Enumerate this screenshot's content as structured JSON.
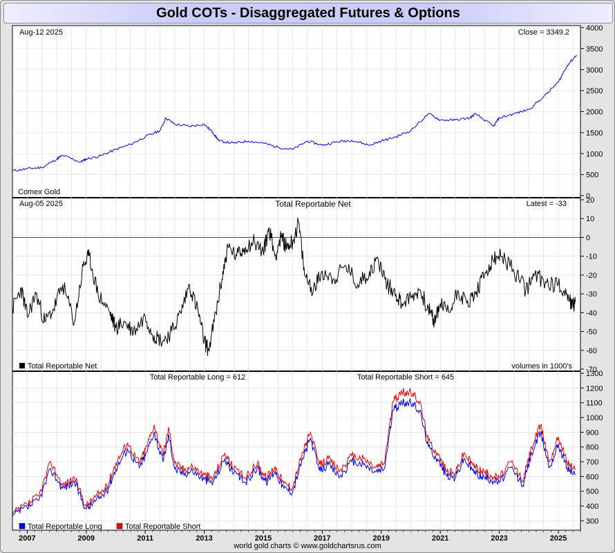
{
  "title": "Gold COTs - Disaggregated Futures & Options",
  "footer": "world gold charts © www.goldchartsrus.com",
  "colors": {
    "price": "#0000ee",
    "net": "#000000",
    "long": "#0000ee",
    "short": "#ee0000",
    "zero": "#cc0077"
  },
  "x_ticks": [
    "2007",
    "2009",
    "2011",
    "2013",
    "2015",
    "2017",
    "2019",
    "2021",
    "2023",
    "2025"
  ],
  "chart_data": [
    {
      "type": "line",
      "date_label": "Aug-12  2025",
      "value_label": "Close = 3349.2",
      "series_label": "Comex Gold",
      "ylim": [
        0,
        4000
      ],
      "yticks": [
        0,
        500,
        1000,
        1500,
        2000,
        2500,
        3000,
        3500,
        4000
      ],
      "x": [
        2006.5,
        2007.0,
        2007.5,
        2008.0,
        2008.2,
        2008.8,
        2009.0,
        2009.5,
        2010.0,
        2010.5,
        2011.0,
        2011.5,
        2011.7,
        2012.0,
        2012.5,
        2013.0,
        2013.3,
        2013.5,
        2014.0,
        2014.5,
        2015.0,
        2015.5,
        2016.0,
        2016.5,
        2017.0,
        2017.5,
        2018.0,
        2018.6,
        2019.0,
        2019.5,
        2020.0,
        2020.6,
        2021.0,
        2021.5,
        2022.0,
        2022.2,
        2022.8,
        2023.0,
        2023.5,
        2024.0,
        2024.5,
        2025.0,
        2025.3,
        2025.62
      ],
      "values": [
        590,
        640,
        670,
        870,
        960,
        800,
        870,
        950,
        1100,
        1220,
        1400,
        1550,
        1850,
        1700,
        1650,
        1700,
        1500,
        1300,
        1250,
        1300,
        1250,
        1150,
        1100,
        1300,
        1200,
        1280,
        1320,
        1200,
        1300,
        1400,
        1550,
        1950,
        1800,
        1800,
        1850,
        1950,
        1650,
        1850,
        1950,
        2050,
        2350,
        2700,
        3100,
        3349.2
      ]
    },
    {
      "type": "line",
      "title": "Total Reportable Net",
      "date_label": "Aug-05  2025",
      "value_label": "Latest = -33",
      "legend": "Total Reportable Net",
      "unit_note": "volumes in 1000's",
      "ylim": [
        -70,
        20
      ],
      "yticks": [
        -70,
        -60,
        -50,
        -40,
        -30,
        -20,
        -10,
        0,
        10,
        20
      ],
      "x": [
        2006.5,
        2006.8,
        2007.0,
        2007.3,
        2007.6,
        2007.9,
        2008.2,
        2008.6,
        2008.9,
        2009.1,
        2009.4,
        2009.8,
        2010.0,
        2010.3,
        2010.6,
        2011.0,
        2011.3,
        2011.6,
        2011.9,
        2012.2,
        2012.5,
        2012.8,
        2013.0,
        2013.15,
        2013.4,
        2013.6,
        2013.8,
        2014.1,
        2014.4,
        2014.7,
        2015.0,
        2015.2,
        2015.4,
        2015.6,
        2015.8,
        2016.0,
        2016.2,
        2016.4,
        2016.7,
        2017.0,
        2017.4,
        2017.8,
        2018.2,
        2018.6,
        2018.9,
        2019.2,
        2019.5,
        2019.7,
        2020.0,
        2020.3,
        2020.6,
        2020.8,
        2021.0,
        2021.3,
        2021.6,
        2021.9,
        2022.2,
        2022.5,
        2022.8,
        2023.1,
        2023.5,
        2023.9,
        2024.2,
        2024.6,
        2025.0,
        2025.3,
        2025.5,
        2025.58
      ],
      "values": [
        -38,
        -27,
        -42,
        -30,
        -45,
        -38,
        -25,
        -45,
        -15,
        -10,
        -30,
        -40,
        -48,
        -45,
        -50,
        -42,
        -52,
        -55,
        -50,
        -40,
        -25,
        -40,
        -55,
        -60,
        -40,
        -22,
        -5,
        -10,
        -5,
        -2,
        -8,
        5,
        -10,
        0,
        -5,
        -2,
        8,
        -20,
        -28,
        -18,
        -22,
        -15,
        -25,
        -18,
        -12,
        -25,
        -30,
        -35,
        -32,
        -28,
        -38,
        -45,
        -35,
        -40,
        -28,
        -35,
        -30,
        -20,
        -12,
        -10,
        -18,
        -28,
        -20,
        -24,
        -25,
        -30,
        -37,
        -33
      ]
    },
    {
      "type": "line",
      "title_long": "Total Reportable Long = 612",
      "title_short": "Total Reportable Short = 645",
      "ylim": [
        250,
        1300
      ],
      "yticks": [
        300,
        400,
        500,
        600,
        700,
        800,
        900,
        1000,
        1100,
        1200,
        1300
      ],
      "x": [
        2006.5,
        2007.0,
        2007.4,
        2007.8,
        2008.2,
        2008.6,
        2009.0,
        2009.3,
        2009.7,
        2010.0,
        2010.4,
        2010.8,
        2011.0,
        2011.3,
        2011.6,
        2011.8,
        2012.0,
        2012.3,
        2012.6,
        2013.0,
        2013.3,
        2013.7,
        2014.0,
        2014.4,
        2014.8,
        2015.1,
        2015.4,
        2015.7,
        2016.0,
        2016.3,
        2016.6,
        2016.9,
        2017.2,
        2017.6,
        2018.0,
        2018.4,
        2018.8,
        2019.1,
        2019.4,
        2019.7,
        2020.0,
        2020.3,
        2020.6,
        2020.9,
        2021.2,
        2021.5,
        2021.8,
        2022.1,
        2022.4,
        2022.7,
        2023.0,
        2023.4,
        2023.8,
        2024.1,
        2024.4,
        2024.7,
        2025.0,
        2025.3,
        2025.58
      ],
      "series": [
        {
          "name": "Total Reportable Long",
          "values": [
            330,
            390,
            440,
            650,
            520,
            560,
            380,
            430,
            500,
            650,
            790,
            660,
            740,
            900,
            700,
            880,
            650,
            620,
            640,
            580,
            560,
            720,
            620,
            560,
            660,
            560,
            640,
            520,
            500,
            700,
            860,
            640,
            680,
            600,
            700,
            680,
            630,
            650,
            1050,
            1100,
            1100,
            1050,
            800,
            720,
            610,
            590,
            720,
            640,
            600,
            580,
            560,
            660,
            540,
            760,
            900,
            660,
            820,
            660,
            612
          ]
        },
        {
          "name": "Total Reportable Short",
          "values": [
            345,
            410,
            470,
            700,
            540,
            590,
            400,
            460,
            530,
            690,
            830,
            690,
            780,
            950,
            740,
            930,
            690,
            650,
            670,
            610,
            590,
            760,
            650,
            590,
            690,
            590,
            670,
            550,
            530,
            740,
            900,
            680,
            720,
            640,
            740,
            720,
            660,
            690,
            1110,
            1170,
            1170,
            1110,
            840,
            760,
            640,
            620,
            760,
            680,
            640,
            610,
            590,
            700,
            570,
            800,
            950,
            700,
            870,
            700,
            645
          ]
        }
      ]
    }
  ]
}
